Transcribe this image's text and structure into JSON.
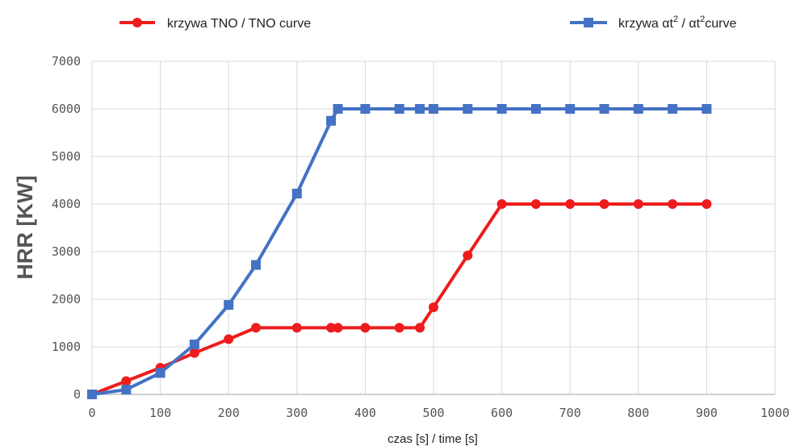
{
  "chart_data": {
    "type": "line",
    "xlabel": "czas [s] / time [s]",
    "ylabel": "HRR [KW]",
    "xlim": [
      0,
      1000
    ],
    "ylim": [
      0,
      7000
    ],
    "x_ticks": [
      0,
      100,
      200,
      300,
      400,
      500,
      600,
      700,
      800,
      900,
      1000
    ],
    "y_ticks": [
      0,
      1000,
      2000,
      3000,
      4000,
      5000,
      6000,
      7000
    ],
    "grid": true,
    "legend_placement": "top",
    "series": [
      {
        "name": "krzywa TNO / TNO curve",
        "color": "#ee1c1c",
        "marker": "circle",
        "points": [
          [
            0,
            0
          ],
          [
            50,
            280
          ],
          [
            100,
            560
          ],
          [
            150,
            870
          ],
          [
            200,
            1160
          ],
          [
            240,
            1400
          ],
          [
            300,
            1400
          ],
          [
            350,
            1400
          ],
          [
            360,
            1400
          ],
          [
            400,
            1400
          ],
          [
            450,
            1400
          ],
          [
            480,
            1400
          ],
          [
            500,
            1830
          ],
          [
            550,
            2920
          ],
          [
            600,
            4000
          ],
          [
            650,
            4000
          ],
          [
            700,
            4000
          ],
          [
            750,
            4000
          ],
          [
            800,
            4000
          ],
          [
            850,
            4000
          ],
          [
            900,
            4000
          ]
        ]
      },
      {
        "name_prefix": "krzywa ",
        "name_mid": " / ",
        "name_suffix": "curve",
        "name_symbol": "αt",
        "name_sup": "2",
        "color": "#4472c4",
        "marker": "square",
        "points": [
          [
            0,
            0
          ],
          [
            50,
            100
          ],
          [
            100,
            450
          ],
          [
            150,
            1050
          ],
          [
            200,
            1880
          ],
          [
            240,
            2720
          ],
          [
            300,
            4220
          ],
          [
            350,
            5750
          ],
          [
            360,
            6000
          ],
          [
            400,
            6000
          ],
          [
            450,
            6000
          ],
          [
            480,
            6000
          ],
          [
            500,
            6000
          ],
          [
            550,
            6000
          ],
          [
            600,
            6000
          ],
          [
            650,
            6000
          ],
          [
            700,
            6000
          ],
          [
            750,
            6000
          ],
          [
            800,
            6000
          ],
          [
            850,
            6000
          ],
          [
            900,
            6000
          ]
        ]
      }
    ]
  }
}
